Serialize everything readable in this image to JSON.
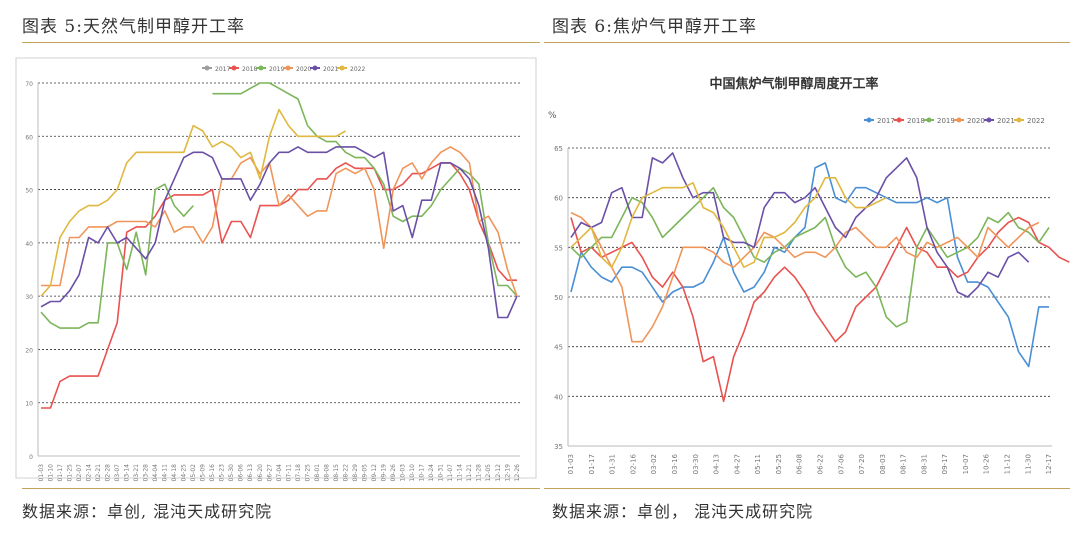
{
  "panels": [
    {
      "title": "图表 5:天然气制甲醇开工率",
      "source": "数据来源：卓创, 混沌天成研究院",
      "chart_data": {
        "type": "line",
        "title": "",
        "ylim": [
          0,
          70
        ],
        "yticks": [
          0,
          10,
          20,
          30,
          40,
          50,
          60,
          70
        ],
        "grid": true,
        "legend_position": "top",
        "x_tick_labels": [
          "01-03",
          "01-10",
          "01-17",
          "01-25",
          "02-07",
          "02-14",
          "02-21",
          "02-28",
          "03-07",
          "03-14",
          "03-21",
          "03-28",
          "04-04",
          "04-11",
          "04-18",
          "04-25",
          "05-02",
          "05-09",
          "05-16",
          "05-23",
          "05-30",
          "06-06",
          "06-13",
          "06-20",
          "06-27",
          "07-04",
          "07-11",
          "07-18",
          "07-25",
          "08-01",
          "08-08",
          "08-15",
          "08-22",
          "08-29",
          "09-05",
          "09-12",
          "09-19",
          "09-26",
          "10-03",
          "10-10",
          "10-17",
          "10-24",
          "10-31",
          "11-07",
          "11-14",
          "11-21",
          "11-28",
          "12-05",
          "12-12",
          "12-19",
          "12-26"
        ],
        "series": [
          {
            "name": "2017",
            "color": "#9e9e9e",
            "values": [
              null,
              null,
              null,
              null,
              null,
              null,
              null,
              null,
              null,
              null,
              null,
              null,
              null,
              null,
              null,
              null,
              null,
              null,
              null,
              null,
              null,
              null,
              null,
              null,
              null,
              null,
              null,
              null,
              null,
              null,
              null,
              null,
              null,
              null,
              null,
              null,
              null,
              null,
              null,
              null,
              null,
              null,
              null,
              null,
              null,
              null,
              null,
              null,
              null,
              null,
              null
            ]
          },
          {
            "name": "2018",
            "color": "#e8524f",
            "values": [
              9,
              9,
              14,
              15,
              15,
              15,
              15,
              20,
              25,
              42,
              43,
              43,
              45,
              48,
              49,
              49,
              49,
              49,
              50,
              40,
              44,
              44,
              41,
              47,
              47,
              47,
              48,
              50,
              50,
              52,
              52,
              54,
              55,
              54,
              54,
              54,
              50,
              50,
              51,
              53,
              53,
              54,
              55,
              55,
              53,
              50,
              44,
              40,
              35,
              33,
              33
            ]
          },
          {
            "name": "2019",
            "color": "#7cb55a",
            "values": [
              27,
              25,
              24,
              24,
              24,
              25,
              25,
              40,
              40,
              35,
              42,
              34,
              50,
              51,
              47,
              45,
              47,
              null,
              68,
              68,
              68,
              68,
              69,
              70,
              70,
              69,
              68,
              67,
              62,
              60,
              59,
              59,
              57,
              56,
              56,
              54,
              51,
              45,
              44,
              45,
              45,
              47,
              50,
              52,
              54,
              53,
              51,
              40,
              32,
              32,
              30
            ]
          },
          {
            "name": "2020",
            "color": "#f0955a",
            "values": [
              32,
              32,
              32,
              41,
              41,
              43,
              43,
              43,
              44,
              44,
              44,
              44,
              43,
              46,
              42,
              43,
              43,
              40,
              43,
              52,
              52,
              55,
              56,
              53,
              55,
              47,
              49,
              47,
              45,
              46,
              46,
              53,
              54,
              53,
              54,
              50,
              39,
              50,
              54,
              55,
              52,
              55,
              57,
              58,
              57,
              55,
              44,
              45,
              42,
              35,
              30
            ]
          },
          {
            "name": "2021",
            "color": "#6a50a7",
            "values": [
              28,
              29,
              29,
              31,
              34,
              41,
              40,
              43,
              40,
              41,
              39,
              37,
              40,
              48,
              52,
              56,
              57,
              57,
              56,
              52,
              52,
              52,
              48,
              51,
              55,
              57,
              57,
              58,
              57,
              57,
              57,
              58,
              58,
              58,
              57,
              56,
              57,
              46,
              47,
              41,
              48,
              48,
              55,
              55,
              54,
              52,
              47,
              39,
              26,
              26,
              30
            ]
          },
          {
            "name": "2022",
            "color": "#e0b840",
            "values": [
              30,
              32,
              41,
              44,
              46,
              47,
              47,
              48,
              50,
              55,
              57,
              57,
              57,
              57,
              57,
              57,
              62,
              61,
              58,
              59,
              58,
              56,
              57,
              52,
              60,
              65,
              62,
              60,
              60,
              60,
              60,
              60,
              61,
              null,
              null,
              null,
              null,
              null,
              null,
              null,
              null,
              null,
              null,
              null,
              null,
              null,
              null,
              null,
              null,
              null,
              null
            ]
          }
        ]
      }
    },
    {
      "title": "图表 6:焦炉气甲醇开工率",
      "source": "数据来源：卓创， 混沌天成研究院",
      "chart_data": {
        "type": "line",
        "title": "中国焦炉气制甲醇周度开工率",
        "ylabel": "%",
        "ylim": [
          35,
          65
        ],
        "yticks": [
          35,
          40,
          45,
          50,
          55,
          60,
          65
        ],
        "grid": true,
        "legend_position": "top-right",
        "x_tick_labels": [
          "01-03",
          "01-17",
          "01-31",
          "02-16",
          "03-02",
          "03-16",
          "03-30",
          "04-13",
          "04-27",
          "05-11",
          "05-25",
          "06-08",
          "06-22",
          "07-06",
          "07-20",
          "08-03",
          "08-17",
          "08-31",
          "09-17",
          "10-07",
          "10-26",
          "11-12",
          "11-30",
          "12-17"
        ],
        "series": [
          {
            "name": "2017",
            "color": "#4a8fd6",
            "values": [
              50.5,
              54.5,
              53,
              52,
              51.5,
              53,
              53,
              52.5,
              51,
              49.5,
              50.5,
              51,
              51,
              51.5,
              53.5,
              56,
              52.5,
              50.5,
              51,
              52.5,
              55,
              54.5,
              56,
              57,
              63,
              63.5,
              60,
              59.5,
              61,
              61,
              60.5,
              60,
              59.5,
              59.5,
              59.5,
              60,
              59.5,
              60,
              54,
              51.5,
              51.5,
              51,
              49.5,
              48,
              44.5,
              43,
              49,
              49
            ]
          },
          {
            "name": "2018",
            "color": "#e8524f",
            "values": [
              58,
              54.5,
              55,
              54,
              54.5,
              55,
              55.5,
              54,
              52,
              51,
              52.5,
              51,
              48,
              43.5,
              44,
              39.5,
              44,
              46.5,
              49.5,
              50.5,
              52,
              53,
              52,
              50.5,
              48.5,
              47,
              45.5,
              46.5,
              49,
              50,
              51,
              53,
              55,
              57,
              55,
              54.5,
              53,
              53,
              52,
              52.5,
              54,
              55,
              56.5,
              57.5,
              58,
              57.5,
              55.5,
              55,
              54,
              53.5
            ]
          },
          {
            "name": "2019",
            "color": "#7cb55a",
            "values": [
              55,
              54,
              55,
              56,
              56,
              58,
              60,
              59.5,
              58,
              56,
              57,
              58,
              59,
              60,
              61,
              59,
              58,
              56,
              54,
              53.5,
              54.5,
              55,
              56,
              56.5,
              57,
              58,
              55,
              53,
              52,
              52.5,
              51,
              48,
              47,
              47.5,
              55,
              57,
              55.5,
              54,
              54.5,
              55,
              56,
              58,
              57.5,
              58.5,
              57,
              56.5,
              55.5,
              57
            ]
          },
          {
            "name": "2020",
            "color": "#f0955a",
            "values": [
              58.5,
              58,
              57,
              55,
              53,
              51,
              45.5,
              45.5,
              47,
              49,
              52,
              55,
              55,
              55,
              54.5,
              53.5,
              53,
              54,
              55,
              56.5,
              56,
              55,
              54,
              54.5,
              54.5,
              54,
              55,
              56.5,
              57,
              56,
              55,
              55,
              56,
              54.5,
              54,
              55.5,
              55,
              55.5,
              56,
              55,
              54,
              57,
              56,
              55,
              56,
              57,
              57.5
            ]
          },
          {
            "name": "2021",
            "color": "#6a50a7",
            "values": [
              56,
              57.5,
              57,
              57.5,
              60.5,
              61,
              58,
              58,
              64,
              63.5,
              64.5,
              62,
              60,
              60.5,
              60.5,
              56,
              55.5,
              55.5,
              55,
              59,
              60.5,
              60.5,
              59.5,
              60,
              61,
              59,
              57,
              56,
              58,
              59,
              60,
              62,
              63,
              64,
              62,
              57,
              54.5,
              53,
              50.5,
              50,
              51,
              52.5,
              52,
              54,
              54.5,
              53.5
            ]
          },
          {
            "name": "2022",
            "color": "#e0b840",
            "values": [
              55,
              56,
              57,
              54,
              53,
              55,
              58,
              60,
              60.5,
              61,
              61,
              61,
              61.5,
              59,
              58.5,
              57,
              55,
              53,
              53.5,
              56,
              56,
              56.5,
              57.5,
              59,
              60,
              62,
              62,
              60,
              59,
              59,
              59.5,
              60
            ]
          }
        ]
      }
    }
  ]
}
